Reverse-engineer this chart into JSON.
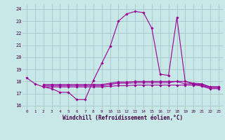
{
  "title": "",
  "xlabel": "Windchill (Refroidissement éolien,°C)",
  "bg_color": "#c8e8e8",
  "grid_color": "#aacccc",
  "line_color": "#990099",
  "xlim": [
    -0.5,
    23.5
  ],
  "ylim": [
    15.7,
    24.4
  ],
  "yticks": [
    16,
    17,
    18,
    19,
    20,
    21,
    22,
    23,
    24
  ],
  "xticks": [
    0,
    1,
    2,
    3,
    4,
    5,
    6,
    7,
    8,
    9,
    10,
    11,
    12,
    13,
    14,
    15,
    16,
    17,
    18,
    19,
    20,
    21,
    22,
    23
  ],
  "series": [
    {
      "x": [
        0,
        1,
        2,
        3,
        4,
        5,
        6,
        7,
        8,
        9,
        10,
        11,
        12,
        13,
        14,
        15,
        16,
        17,
        18,
        19,
        20,
        21,
        22,
        23
      ],
      "y": [
        18.3,
        17.8,
        17.55,
        17.4,
        17.1,
        17.1,
        16.5,
        16.5,
        18.1,
        19.5,
        20.9,
        23.0,
        23.6,
        23.8,
        23.7,
        22.4,
        18.6,
        18.5,
        23.3,
        18.0,
        17.8,
        17.6,
        17.4,
        17.4
      ]
    },
    {
      "x": [
        2,
        3,
        4,
        5,
        6,
        7,
        8,
        9,
        10,
        11,
        12,
        13,
        14,
        15,
        16,
        17,
        18,
        19,
        20,
        21,
        22,
        23
      ],
      "y": [
        17.55,
        17.55,
        17.55,
        17.55,
        17.55,
        17.55,
        17.55,
        17.55,
        17.6,
        17.65,
        17.65,
        17.7,
        17.7,
        17.7,
        17.7,
        17.7,
        17.7,
        17.7,
        17.7,
        17.65,
        17.5,
        17.5
      ]
    },
    {
      "x": [
        2,
        3,
        4,
        5,
        6,
        7,
        8,
        9,
        10,
        11,
        12,
        13,
        14,
        15,
        16,
        17,
        18,
        19,
        20,
        21,
        22,
        23
      ],
      "y": [
        17.65,
        17.65,
        17.65,
        17.65,
        17.65,
        17.65,
        17.65,
        17.65,
        17.75,
        17.85,
        17.85,
        17.9,
        17.9,
        17.9,
        17.9,
        17.9,
        18.0,
        17.8,
        17.8,
        17.75,
        17.55,
        17.55
      ]
    },
    {
      "x": [
        2,
        3,
        4,
        5,
        6,
        7,
        8,
        9,
        10,
        11,
        12,
        13,
        14,
        15,
        16,
        17,
        18,
        19,
        20,
        21,
        22,
        23
      ],
      "y": [
        17.75,
        17.75,
        17.75,
        17.75,
        17.75,
        17.75,
        17.75,
        17.75,
        17.85,
        17.95,
        17.95,
        18.0,
        18.0,
        18.0,
        18.0,
        18.0,
        18.0,
        18.0,
        17.85,
        17.8,
        17.55,
        17.55
      ]
    }
  ]
}
